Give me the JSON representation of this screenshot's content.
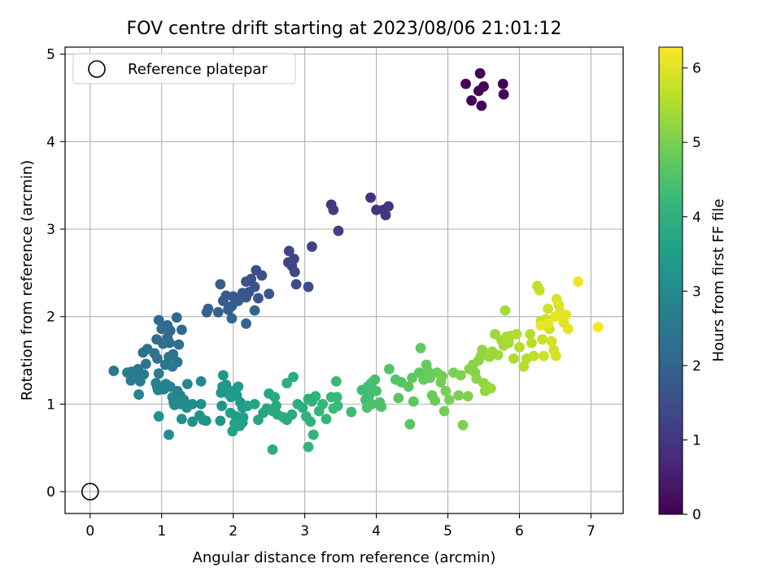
{
  "chart_data": {
    "type": "scatter",
    "title": "FOV centre drift starting at 2023/08/06 21:01:12",
    "xlabel": "Angular distance from reference (arcmin)",
    "ylabel": "Rotation from reference (arcmin)",
    "xlim": [
      -0.35,
      7.45
    ],
    "ylim": [
      -0.25,
      5.08
    ],
    "xticks": [
      0,
      1,
      2,
      3,
      4,
      5,
      6,
      7
    ],
    "yticks": [
      0,
      1,
      2,
      3,
      4,
      5
    ],
    "grid": true,
    "legend": {
      "placement": "top-left",
      "entries": [
        "Reference platepar"
      ]
    },
    "reference_point": {
      "x": 0,
      "y": 0
    },
    "colorbar": {
      "label": "Hours from first FF file",
      "range": [
        0,
        6.28
      ],
      "ticks": [
        0,
        1,
        2,
        3,
        4,
        5,
        6
      ],
      "colormap": "viridis"
    },
    "points": [
      [
        5.25,
        4.66,
        0.05
      ],
      [
        5.45,
        4.78,
        0.05
      ],
      [
        5.33,
        4.47,
        0.06
      ],
      [
        5.43,
        4.58,
        0.06
      ],
      [
        5.5,
        4.63,
        0.07
      ],
      [
        5.47,
        4.41,
        0.07
      ],
      [
        5.77,
        4.66,
        0.08
      ],
      [
        5.78,
        4.54,
        0.08
      ],
      [
        3.92,
        3.36,
        0.9
      ],
      [
        4.0,
        3.22,
        0.92
      ],
      [
        4.1,
        3.22,
        0.95
      ],
      [
        4.17,
        3.26,
        0.97
      ],
      [
        4.13,
        3.16,
        1.0
      ],
      [
        3.37,
        3.28,
        1.05
      ],
      [
        3.4,
        3.22,
        1.08
      ],
      [
        3.47,
        2.98,
        1.1
      ],
      [
        3.1,
        2.8,
        1.2
      ],
      [
        2.78,
        2.75,
        1.25
      ],
      [
        2.85,
        2.66,
        1.28
      ],
      [
        2.77,
        2.62,
        1.3
      ],
      [
        2.82,
        2.58,
        1.32
      ],
      [
        2.86,
        2.51,
        1.35
      ],
      [
        2.88,
        2.37,
        1.38
      ],
      [
        3.05,
        2.34,
        1.4
      ],
      [
        2.32,
        2.53,
        1.5
      ],
      [
        2.4,
        2.47,
        1.52
      ],
      [
        2.25,
        2.43,
        1.55
      ],
      [
        2.18,
        2.4,
        1.57
      ],
      [
        2.3,
        2.34,
        1.6
      ],
      [
        2.22,
        2.28,
        1.62
      ],
      [
        2.5,
        2.26,
        1.65
      ],
      [
        2.35,
        2.21,
        1.67
      ],
      [
        2.18,
        2.22,
        1.7
      ],
      [
        2.13,
        2.27,
        1.72
      ],
      [
        2.0,
        2.23,
        1.75
      ],
      [
        1.9,
        2.24,
        1.77
      ],
      [
        1.86,
        2.18,
        1.8
      ],
      [
        1.98,
        2.12,
        1.82
      ],
      [
        2.07,
        2.18,
        1.85
      ],
      [
        1.93,
        2.08,
        1.87
      ],
      [
        1.82,
        2.37,
        1.9
      ],
      [
        1.65,
        2.09,
        1.92
      ],
      [
        1.63,
        2.05,
        1.95
      ],
      [
        1.79,
        2.05,
        1.97
      ],
      [
        2.3,
        2.07,
        2.0
      ],
      [
        1.98,
        1.98,
        2.02
      ],
      [
        2.18,
        1.92,
        2.05
      ],
      [
        1.21,
        1.99,
        2.1
      ],
      [
        0.96,
        1.96,
        2.12
      ],
      [
        1.08,
        1.9,
        2.14
      ],
      [
        1.0,
        1.86,
        2.16
      ],
      [
        1.12,
        1.84,
        2.18
      ],
      [
        1.28,
        1.85,
        2.2
      ],
      [
        1.08,
        1.76,
        2.22
      ],
      [
        0.93,
        1.74,
        2.24
      ],
      [
        1.11,
        1.7,
        2.26
      ],
      [
        1.02,
        1.69,
        2.28
      ],
      [
        1.24,
        1.68,
        2.3
      ],
      [
        0.8,
        1.63,
        2.32
      ],
      [
        0.74,
        1.59,
        2.34
      ],
      [
        0.9,
        1.58,
        2.36
      ],
      [
        1.1,
        1.54,
        2.38
      ],
      [
        1.16,
        1.57,
        2.4
      ],
      [
        0.94,
        1.52,
        2.42
      ],
      [
        1.22,
        1.48,
        2.44
      ],
      [
        0.78,
        1.46,
        2.46
      ],
      [
        1.05,
        1.45,
        2.48
      ],
      [
        1.15,
        1.43,
        2.5
      ],
      [
        0.67,
        1.4,
        2.52
      ],
      [
        0.58,
        1.37,
        2.54
      ],
      [
        0.33,
        1.38,
        2.56
      ],
      [
        0.52,
        1.36,
        2.58
      ],
      [
        0.96,
        1.35,
        2.6
      ],
      [
        0.75,
        1.34,
        2.62
      ],
      [
        0.65,
        1.3,
        2.64
      ],
      [
        0.57,
        1.27,
        2.66
      ],
      [
        0.7,
        1.26,
        2.68
      ],
      [
        0.92,
        1.24,
        2.7
      ],
      [
        1.06,
        1.23,
        2.72
      ],
      [
        1.12,
        1.2,
        2.74
      ],
      [
        0.94,
        1.19,
        2.76
      ],
      [
        1.03,
        1.17,
        2.78
      ],
      [
        0.95,
        1.16,
        2.8
      ],
      [
        0.68,
        1.11,
        2.82
      ],
      [
        1.22,
        1.15,
        2.84
      ],
      [
        1.26,
        1.1,
        2.86
      ],
      [
        1.15,
        1.08,
        2.88
      ],
      [
        1.17,
        1.02,
        2.9
      ],
      [
        1.36,
        1.23,
        2.92
      ],
      [
        1.55,
        1.26,
        2.95
      ],
      [
        1.31,
        1.05,
        2.97
      ],
      [
        1.27,
        1.0,
        3.0
      ],
      [
        1.18,
        0.99,
        3.02
      ],
      [
        1.43,
        1.0,
        3.04
      ],
      [
        1.35,
        0.96,
        3.06
      ],
      [
        1.55,
        1.0,
        3.08
      ],
      [
        0.96,
        0.86,
        3.1
      ],
      [
        1.1,
        0.65,
        3.12
      ],
      [
        1.28,
        0.83,
        3.14
      ],
      [
        1.43,
        0.8,
        3.16
      ],
      [
        1.53,
        0.87,
        3.18
      ],
      [
        1.58,
        0.82,
        3.2
      ],
      [
        1.62,
        0.81,
        3.22
      ],
      [
        1.84,
        0.98,
        3.24
      ],
      [
        1.82,
        0.81,
        3.26
      ],
      [
        1.86,
        1.33,
        3.28
      ],
      [
        1.85,
        1.2,
        3.3
      ],
      [
        1.9,
        1.22,
        3.32
      ],
      [
        1.83,
        1.13,
        3.34
      ],
      [
        1.93,
        1.12,
        3.36
      ],
      [
        2.0,
        1.15,
        3.38
      ],
      [
        2.07,
        1.2,
        3.4
      ],
      [
        2.05,
        1.1,
        3.42
      ],
      [
        1.97,
        1.08,
        3.44
      ],
      [
        2.1,
        1.02,
        3.46
      ],
      [
        2.13,
        0.96,
        3.48
      ],
      [
        1.96,
        0.9,
        3.5
      ],
      [
        2.04,
        0.86,
        3.52
      ],
      [
        2.14,
        0.85,
        3.54
      ],
      [
        2.02,
        0.78,
        3.56
      ],
      [
        2.13,
        0.79,
        3.58
      ],
      [
        2.09,
        0.75,
        3.6
      ],
      [
        1.99,
        0.69,
        3.62
      ],
      [
        2.2,
        0.98,
        3.64
      ],
      [
        2.3,
        1.0,
        3.66
      ],
      [
        2.35,
        0.82,
        3.68
      ],
      [
        2.42,
        0.9,
        3.7
      ],
      [
        2.47,
        0.95,
        3.72
      ],
      [
        2.5,
        1.12,
        3.74
      ],
      [
        2.58,
        1.08,
        3.76
      ],
      [
        2.6,
        0.98,
        3.78
      ],
      [
        2.55,
        0.92,
        3.8
      ],
      [
        2.62,
        0.88,
        3.82
      ],
      [
        2.7,
        0.85,
        3.84
      ],
      [
        2.75,
        0.82,
        3.86
      ],
      [
        2.82,
        0.88,
        3.88
      ],
      [
        2.55,
        0.48,
        3.9
      ],
      [
        2.84,
        1.31,
        3.92
      ],
      [
        2.75,
        1.24,
        3.94
      ],
      [
        2.9,
        1.0,
        3.96
      ],
      [
        2.97,
        0.96,
        3.98
      ],
      [
        3.05,
        1.06,
        4.0
      ],
      [
        3.1,
        1.03,
        4.02
      ],
      [
        3.15,
        1.09,
        4.04
      ],
      [
        3.08,
        0.8,
        4.06
      ],
      [
        3.02,
        0.86,
        4.08
      ],
      [
        3.12,
        0.65,
        4.1
      ],
      [
        3.05,
        0.51,
        4.12
      ],
      [
        3.2,
        0.92,
        4.14
      ],
      [
        3.25,
        1.0,
        4.16
      ],
      [
        3.3,
        0.83,
        4.18
      ],
      [
        3.37,
        1.08,
        4.2
      ],
      [
        3.45,
        1.08,
        4.22
      ],
      [
        3.44,
        1.26,
        4.24
      ],
      [
        3.4,
        0.95,
        4.26
      ],
      [
        3.46,
        0.98,
        4.28
      ],
      [
        3.65,
        0.91,
        4.3
      ],
      [
        3.8,
        1.16,
        4.32
      ],
      [
        3.85,
        1.05,
        4.34
      ],
      [
        3.9,
        1.1,
        4.36
      ],
      [
        3.88,
        1.2,
        4.38
      ],
      [
        3.93,
        1.24,
        4.4
      ],
      [
        3.98,
        1.28,
        4.42
      ],
      [
        4.0,
        1.15,
        4.44
      ],
      [
        3.94,
        1.0,
        4.46
      ],
      [
        4.05,
        1.02,
        4.48
      ],
      [
        3.87,
        0.96,
        4.5
      ],
      [
        4.07,
        0.97,
        4.52
      ],
      [
        4.18,
        1.4,
        4.55
      ],
      [
        4.27,
        1.28,
        4.57
      ],
      [
        4.35,
        1.25,
        4.6
      ],
      [
        4.31,
        1.07,
        4.62
      ],
      [
        4.47,
        0.77,
        4.64
      ],
      [
        4.45,
        1.2,
        4.66
      ],
      [
        4.5,
        1.3,
        4.68
      ],
      [
        4.52,
        1.03,
        4.7
      ],
      [
        4.6,
        1.36,
        4.72
      ],
      [
        4.62,
        1.64,
        4.74
      ],
      [
        4.66,
        1.28,
        4.76
      ],
      [
        4.7,
        1.45,
        4.78
      ],
      [
        4.72,
        1.38,
        4.8
      ],
      [
        4.75,
        1.3,
        4.82
      ],
      [
        4.78,
        1.1,
        4.84
      ],
      [
        4.82,
        1.04,
        4.86
      ],
      [
        4.85,
        1.36,
        4.88
      ],
      [
        4.9,
        1.25,
        4.9
      ],
      [
        4.92,
        1.32,
        4.92
      ],
      [
        4.95,
        0.92,
        4.94
      ],
      [
        4.97,
        1.15,
        4.96
      ],
      [
        5.02,
        1.05,
        4.98
      ],
      [
        5.08,
        1.36,
        5.0
      ],
      [
        5.15,
        1.1,
        5.02
      ],
      [
        5.18,
        1.33,
        5.04
      ],
      [
        5.21,
        0.76,
        5.06
      ],
      [
        5.28,
        1.09,
        5.08
      ],
      [
        5.3,
        1.4,
        5.1
      ],
      [
        5.35,
        1.45,
        5.12
      ],
      [
        5.38,
        1.36,
        5.14
      ],
      [
        5.4,
        1.29,
        5.16
      ],
      [
        5.43,
        1.5,
        5.18
      ],
      [
        5.46,
        1.55,
        5.2
      ],
      [
        5.48,
        1.62,
        5.22
      ],
      [
        5.5,
        1.24,
        5.24
      ],
      [
        5.52,
        1.15,
        5.26
      ],
      [
        5.55,
        1.2,
        5.28
      ],
      [
        5.58,
        1.54,
        5.3
      ],
      [
        5.6,
        1.18,
        5.32
      ],
      [
        5.62,
        1.6,
        5.34
      ],
      [
        5.66,
        1.8,
        5.36
      ],
      [
        5.7,
        1.56,
        5.38
      ],
      [
        5.75,
        1.73,
        5.4
      ],
      [
        5.78,
        1.67,
        5.42
      ],
      [
        5.8,
        2.07,
        5.44
      ],
      [
        5.82,
        1.77,
        5.46
      ],
      [
        5.85,
        1.7,
        5.48
      ],
      [
        5.88,
        1.78,
        5.5
      ],
      [
        5.92,
        1.52,
        5.52
      ],
      [
        5.96,
        1.8,
        5.54
      ],
      [
        6.0,
        1.65,
        5.56
      ],
      [
        6.06,
        1.43,
        5.58
      ],
      [
        6.1,
        1.52,
        5.6
      ],
      [
        6.15,
        1.8,
        5.62
      ],
      [
        6.17,
        1.7,
        5.64
      ],
      [
        6.2,
        1.55,
        5.66
      ],
      [
        6.25,
        2.35,
        5.7
      ],
      [
        6.28,
        2.3,
        5.72
      ],
      [
        6.3,
        1.95,
        5.74
      ],
      [
        6.32,
        1.74,
        5.76
      ],
      [
        6.34,
        1.55,
        5.78
      ],
      [
        6.37,
        1.97,
        5.8
      ],
      [
        6.4,
        2.09,
        5.82
      ],
      [
        6.42,
        1.86,
        5.84
      ],
      [
        6.45,
        1.72,
        5.86
      ],
      [
        6.48,
        1.62,
        5.88
      ],
      [
        6.51,
        1.55,
        5.9
      ],
      [
        6.52,
        2.2,
        5.92
      ],
      [
        6.55,
        2.13,
        5.94
      ],
      [
        6.57,
        2.05,
        5.96
      ],
      [
        6.6,
        1.99,
        5.98
      ],
      [
        6.62,
        1.93,
        6.0
      ],
      [
        6.65,
        2.02,
        6.02
      ],
      [
        6.68,
        1.86,
        6.04
      ],
      [
        6.5,
        2.0,
        6.06
      ],
      [
        6.4,
        1.92,
        6.08
      ],
      [
        6.3,
        1.9,
        6.1
      ],
      [
        6.82,
        2.4,
        6.15
      ],
      [
        7.1,
        1.88,
        6.2
      ]
    ]
  }
}
